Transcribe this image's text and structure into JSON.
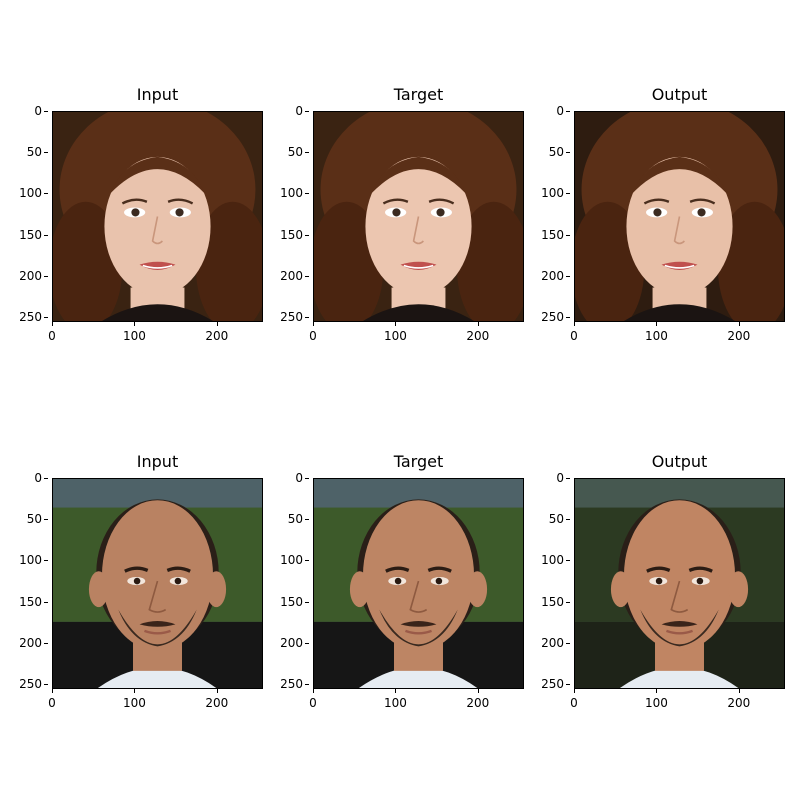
{
  "rows": [
    {
      "panels": [
        {
          "title": "Input",
          "subject": "woman-face",
          "variant": "input"
        },
        {
          "title": "Target",
          "subject": "woman-face",
          "variant": "target"
        },
        {
          "title": "Output",
          "subject": "woman-face",
          "variant": "output"
        }
      ]
    },
    {
      "panels": [
        {
          "title": "Input",
          "subject": "bald-man-face",
          "variant": "input"
        },
        {
          "title": "Target",
          "subject": "bald-man-face",
          "variant": "target"
        },
        {
          "title": "Output",
          "subject": "bald-man-face",
          "variant": "output"
        }
      ]
    }
  ],
  "axes": {
    "y_ticks": [
      "0",
      "50",
      "100",
      "150",
      "200",
      "250"
    ],
    "x_ticks": [
      "0",
      "100",
      "200"
    ],
    "y_tick_values": [
      0,
      50,
      100,
      150,
      200,
      250
    ],
    "x_tick_values": [
      0,
      100,
      200
    ],
    "image_size": 256
  },
  "colors": {
    "woman_skin": "#e9c3ad",
    "woman_hair": "#5a2f17",
    "woman_bg": "#3a2312",
    "man_skin": "#b98262",
    "man_bg_sky": "#4e6268",
    "man_bg_trees": "#3d5a2a",
    "man_beard": "#3a2a20",
    "lips": "#c0504e"
  }
}
